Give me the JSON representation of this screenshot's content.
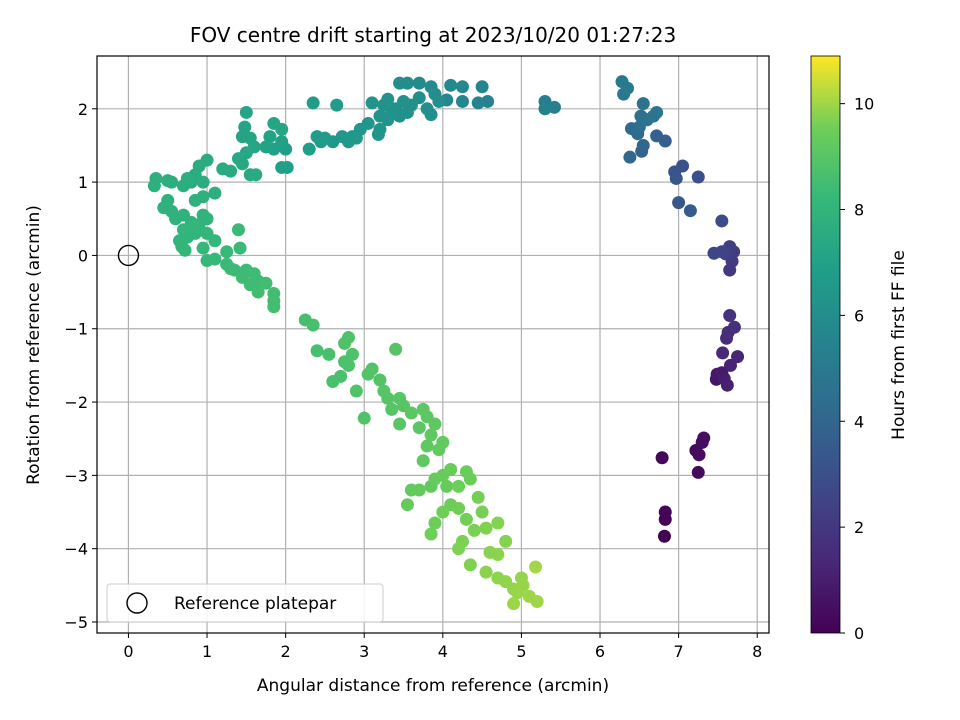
{
  "chart_data": {
    "type": "scatter",
    "title": "FOV centre drift starting at 2023/10/20 01:27:23",
    "xlabel": "Angular distance from reference (arcmin)",
    "ylabel": "Rotation from reference (arcmin)",
    "xlim": [
      -0.4,
      8.15
    ],
    "ylim": [
      -5.15,
      2.72
    ],
    "xticks": [
      0,
      1,
      2,
      3,
      4,
      5,
      6,
      7,
      8
    ],
    "yticks": [
      -5,
      -4,
      -3,
      -2,
      -1,
      0,
      1,
      2
    ],
    "grid": true,
    "colorbar": {
      "label": "Hours from first FF file",
      "range": [
        0,
        10.9
      ],
      "ticks": [
        0,
        2,
        4,
        6,
        8,
        10
      ],
      "colormap": "viridis"
    },
    "legend": {
      "position": "lower-left",
      "entries": [
        "Reference platepar"
      ]
    },
    "reference_point": {
      "x": 0,
      "y": 0,
      "name": "Reference platepar"
    },
    "columns": [
      "x",
      "y",
      "hours"
    ],
    "points": [
      [
        6.82,
        -3.83,
        0.05
      ],
      [
        6.83,
        -3.6,
        0.1
      ],
      [
        6.83,
        -3.5,
        0.15
      ],
      [
        6.79,
        -2.76,
        0.2
      ],
      [
        7.25,
        -2.96,
        0.3
      ],
      [
        7.22,
        -2.66,
        0.35
      ],
      [
        7.26,
        -2.72,
        0.4
      ],
      [
        7.3,
        -2.55,
        0.45
      ],
      [
        7.32,
        -2.49,
        0.5
      ],
      [
        7.48,
        -1.69,
        0.7
      ],
      [
        7.49,
        -1.62,
        0.8
      ],
      [
        7.55,
        -1.6,
        0.9
      ],
      [
        7.58,
        -1.68,
        1.0
      ],
      [
        7.62,
        -1.77,
        1.1
      ],
      [
        7.66,
        -1.5,
        1.2
      ],
      [
        7.75,
        -1.38,
        1.3
      ],
      [
        7.56,
        -1.33,
        1.4
      ],
      [
        7.61,
        -1.13,
        1.5
      ],
      [
        7.63,
        -1.05,
        1.6
      ],
      [
        7.71,
        -0.98,
        1.7
      ],
      [
        7.65,
        -0.82,
        1.8
      ],
      [
        7.65,
        -0.2,
        2.0
      ],
      [
        7.68,
        -0.08,
        2.1
      ],
      [
        7.7,
        0.05,
        2.2
      ],
      [
        7.65,
        0.12,
        2.3
      ],
      [
        7.6,
        0.02,
        2.4
      ],
      [
        7.55,
        0.05,
        2.5
      ],
      [
        7.45,
        0.03,
        2.6
      ],
      [
        7.55,
        0.47,
        2.8
      ],
      [
        7.25,
        1.07,
        3.0
      ],
      [
        7.05,
        1.22,
        3.1
      ],
      [
        6.95,
        1.14,
        3.2
      ],
      [
        6.97,
        1.05,
        3.3
      ],
      [
        7.0,
        0.72,
        3.4
      ],
      [
        7.15,
        0.61,
        3.5
      ],
      [
        6.83,
        1.56,
        3.7
      ],
      [
        6.72,
        1.63,
        3.8
      ],
      [
        6.53,
        1.42,
        3.9
      ],
      [
        6.55,
        1.5,
        4.0
      ],
      [
        6.38,
        1.34,
        4.1
      ],
      [
        6.48,
        1.66,
        4.2
      ],
      [
        6.4,
        1.73,
        4.3
      ],
      [
        6.5,
        1.75,
        4.4
      ],
      [
        6.52,
        1.9,
        4.5
      ],
      [
        6.6,
        1.85,
        4.6
      ],
      [
        6.55,
        2.07,
        4.7
      ],
      [
        6.68,
        1.9,
        4.75
      ],
      [
        6.72,
        1.95,
        4.8
      ],
      [
        6.3,
        2.2,
        4.9
      ],
      [
        6.35,
        2.28,
        5.0
      ],
      [
        6.28,
        2.37,
        5.05
      ],
      [
        5.3,
        2.1,
        5.2
      ],
      [
        5.42,
        2.02,
        5.3
      ],
      [
        5.3,
        2.0,
        5.35
      ],
      [
        4.57,
        2.1,
        5.5
      ],
      [
        4.45,
        2.08,
        5.55
      ],
      [
        4.5,
        2.3,
        5.6
      ],
      [
        4.25,
        2.1,
        5.65
      ],
      [
        4.05,
        2.12,
        5.7
      ],
      [
        4.25,
        2.3,
        5.75
      ],
      [
        4.1,
        2.32,
        5.8
      ],
      [
        3.85,
        2.3,
        5.85
      ],
      [
        3.7,
        2.35,
        5.9
      ],
      [
        3.55,
        2.35,
        5.95
      ],
      [
        3.45,
        2.35,
        6.0
      ],
      [
        3.9,
        2.2,
        6.02
      ],
      [
        3.95,
        2.1,
        6.04
      ],
      [
        3.8,
        2.0,
        6.06
      ],
      [
        3.85,
        1.92,
        6.08
      ],
      [
        3.7,
        2.15,
        6.1
      ],
      [
        3.6,
        2.05,
        6.12
      ],
      [
        3.55,
        1.95,
        6.14
      ],
      [
        3.5,
        2.1,
        6.16
      ],
      [
        3.45,
        1.9,
        6.18
      ],
      [
        3.4,
        2.0,
        6.2
      ],
      [
        3.35,
        1.95,
        6.22
      ],
      [
        3.3,
        1.85,
        6.24
      ],
      [
        3.2,
        1.9,
        6.26
      ],
      [
        3.25,
        2.05,
        6.28
      ],
      [
        3.3,
        2.13,
        6.3
      ],
      [
        3.1,
        2.08,
        6.32
      ],
      [
        3.05,
        1.8,
        6.34
      ],
      [
        3.18,
        1.65,
        6.36
      ],
      [
        3.2,
        1.72,
        6.38
      ],
      [
        2.95,
        1.72,
        6.42
      ],
      [
        2.85,
        1.62,
        6.46
      ],
      [
        2.8,
        1.55,
        6.5
      ],
      [
        2.72,
        1.62,
        6.52
      ],
      [
        2.9,
        1.6,
        6.54
      ],
      [
        2.6,
        1.55,
        6.58
      ],
      [
        2.5,
        1.6,
        6.62
      ],
      [
        2.45,
        1.55,
        6.66
      ],
      [
        2.65,
        2.05,
        6.7
      ],
      [
        2.35,
        2.08,
        6.74
      ],
      [
        2.4,
        1.62,
        6.78
      ],
      [
        2.3,
        1.45,
        6.82
      ],
      [
        2.0,
        1.45,
        6.86
      ],
      [
        2.02,
        1.2,
        6.9
      ],
      [
        1.95,
        1.2,
        6.94
      ],
      [
        1.85,
        1.45,
        6.98
      ],
      [
        1.95,
        1.55,
        7.0
      ],
      [
        1.75,
        1.48,
        7.04
      ],
      [
        1.8,
        1.62,
        7.08
      ],
      [
        1.55,
        1.6,
        7.12
      ],
      [
        1.45,
        1.62,
        7.14
      ],
      [
        1.48,
        1.75,
        7.16
      ],
      [
        1.5,
        1.95,
        7.18
      ],
      [
        1.85,
        1.8,
        7.2
      ],
      [
        1.95,
        1.72,
        7.22
      ],
      [
        1.6,
        1.48,
        7.26
      ],
      [
        1.5,
        1.4,
        7.3
      ],
      [
        1.4,
        1.32,
        7.34
      ],
      [
        1.45,
        1.25,
        7.38
      ],
      [
        1.55,
        1.1,
        7.42
      ],
      [
        1.62,
        1.1,
        7.44
      ],
      [
        1.3,
        1.15,
        7.46
      ],
      [
        1.2,
        1.18,
        7.5
      ],
      [
        1.0,
        1.3,
        7.54
      ],
      [
        0.9,
        1.22,
        7.56
      ],
      [
        0.85,
        1.1,
        7.58
      ],
      [
        0.95,
        1.0,
        7.6
      ],
      [
        0.8,
        1.0,
        7.62
      ],
      [
        0.7,
        0.95,
        7.64
      ],
      [
        0.75,
        1.05,
        7.66
      ],
      [
        0.55,
        1.0,
        7.68
      ],
      [
        0.5,
        1.02,
        7.7
      ],
      [
        0.35,
        1.05,
        7.72
      ],
      [
        0.33,
        0.95,
        7.74
      ],
      [
        1.1,
        0.85,
        7.76
      ],
      [
        0.95,
        0.8,
        7.78
      ],
      [
        0.85,
        0.75,
        7.8
      ],
      [
        0.5,
        0.75,
        7.82
      ],
      [
        0.45,
        0.65,
        7.84
      ],
      [
        0.55,
        0.6,
        7.86
      ],
      [
        0.6,
        0.5,
        7.88
      ],
      [
        0.7,
        0.55,
        7.9
      ],
      [
        0.8,
        0.45,
        7.92
      ],
      [
        0.9,
        0.42,
        7.94
      ],
      [
        0.95,
        0.55,
        7.96
      ],
      [
        1.0,
        0.5,
        7.98
      ],
      [
        0.85,
        0.3,
        8.0
      ],
      [
        0.75,
        0.25,
        8.02
      ],
      [
        0.7,
        0.35,
        8.04
      ],
      [
        0.65,
        0.2,
        8.06
      ],
      [
        0.68,
        0.12,
        8.08
      ],
      [
        0.72,
        0.07,
        8.1
      ],
      [
        0.85,
        0.4,
        8.12
      ],
      [
        1.0,
        0.3,
        8.14
      ],
      [
        1.1,
        0.2,
        8.16
      ],
      [
        0.95,
        0.1,
        8.18
      ],
      [
        1.0,
        -0.07,
        8.2
      ],
      [
        1.1,
        -0.05,
        8.22
      ],
      [
        1.25,
        0.05,
        8.24
      ],
      [
        1.4,
        0.35,
        8.26
      ],
      [
        1.42,
        0.1,
        8.28
      ],
      [
        1.25,
        -0.12,
        8.3
      ],
      [
        1.3,
        -0.18,
        8.32
      ],
      [
        1.35,
        -0.2,
        8.34
      ],
      [
        1.5,
        -0.2,
        8.36
      ],
      [
        1.45,
        -0.3,
        8.38
      ],
      [
        1.6,
        -0.25,
        8.4
      ],
      [
        1.65,
        -0.35,
        8.42
      ],
      [
        1.55,
        -0.4,
        8.44
      ],
      [
        1.75,
        -0.38,
        8.46
      ],
      [
        1.85,
        -0.52,
        8.48
      ],
      [
        1.65,
        -0.5,
        8.5
      ],
      [
        1.85,
        -0.62,
        8.52
      ],
      [
        1.85,
        -0.7,
        8.54
      ],
      [
        2.25,
        -0.88,
        8.6
      ],
      [
        2.35,
        -0.95,
        8.62
      ],
      [
        2.4,
        -1.3,
        8.64
      ],
      [
        2.55,
        -1.35,
        8.66
      ],
      [
        2.6,
        -1.72,
        8.68
      ],
      [
        2.7,
        -1.65,
        8.7
      ],
      [
        2.75,
        -1.45,
        8.72
      ],
      [
        2.8,
        -1.5,
        8.74
      ],
      [
        2.85,
        -1.35,
        8.76
      ],
      [
        2.75,
        -1.2,
        8.78
      ],
      [
        2.8,
        -1.12,
        8.8
      ],
      [
        2.9,
        -1.85,
        8.82
      ],
      [
        3.0,
        -2.22,
        8.84
      ],
      [
        3.05,
        -1.62,
        8.86
      ],
      [
        3.1,
        -1.55,
        8.88
      ],
      [
        3.2,
        -1.7,
        8.9
      ],
      [
        3.3,
        -1.95,
        8.92
      ],
      [
        3.35,
        -2.1,
        8.94
      ],
      [
        3.4,
        -1.28,
        8.96
      ],
      [
        3.25,
        -1.85,
        8.98
      ],
      [
        3.45,
        -1.95,
        9.0
      ],
      [
        3.5,
        -2.05,
        9.02
      ],
      [
        3.45,
        -2.3,
        9.04
      ],
      [
        3.6,
        -2.15,
        9.06
      ],
      [
        3.7,
        -2.35,
        9.08
      ],
      [
        3.75,
        -2.1,
        9.1
      ],
      [
        3.8,
        -2.2,
        9.12
      ],
      [
        3.9,
        -2.3,
        9.14
      ],
      [
        3.85,
        -2.45,
        9.16
      ],
      [
        3.8,
        -2.6,
        9.18
      ],
      [
        3.75,
        -2.8,
        9.2
      ],
      [
        3.95,
        -2.65,
        9.22
      ],
      [
        4.0,
        -2.55,
        9.24
      ],
      [
        3.85,
        -3.15,
        9.26
      ],
      [
        3.7,
        -3.2,
        9.28
      ],
      [
        3.6,
        -3.2,
        9.3
      ],
      [
        3.55,
        -3.4,
        9.32
      ],
      [
        3.9,
        -3.05,
        9.34
      ],
      [
        4.0,
        -3.0,
        9.36
      ],
      [
        4.05,
        -3.15,
        9.38
      ],
      [
        4.1,
        -2.92,
        9.4
      ],
      [
        4.3,
        -2.95,
        9.42
      ],
      [
        4.35,
        -3.05,
        9.44
      ],
      [
        4.2,
        -3.15,
        9.46
      ],
      [
        4.1,
        -3.4,
        9.48
      ],
      [
        3.9,
        -3.65,
        9.5
      ],
      [
        3.85,
        -3.8,
        9.52
      ],
      [
        4.0,
        -3.5,
        9.54
      ],
      [
        4.2,
        -3.45,
        9.56
      ],
      [
        4.3,
        -3.6,
        9.58
      ],
      [
        4.45,
        -3.3,
        9.6
      ],
      [
        4.5,
        -3.5,
        9.62
      ],
      [
        4.4,
        -3.75,
        9.64
      ],
      [
        4.25,
        -3.9,
        9.66
      ],
      [
        4.2,
        -4.0,
        9.68
      ],
      [
        4.35,
        -4.22,
        9.7
      ],
      [
        4.55,
        -3.72,
        9.72
      ],
      [
        4.7,
        -3.65,
        9.74
      ],
      [
        4.8,
        -3.9,
        9.76
      ],
      [
        4.6,
        -4.05,
        9.78
      ],
      [
        4.7,
        -4.08,
        9.8
      ],
      [
        4.55,
        -4.32,
        9.82
      ],
      [
        4.7,
        -4.4,
        9.84
      ],
      [
        4.8,
        -4.45,
        9.86
      ],
      [
        4.9,
        -4.55,
        9.88
      ],
      [
        5.0,
        -4.4,
        9.9
      ],
      [
        5.02,
        -4.5,
        9.92
      ],
      [
        4.95,
        -4.6,
        9.94
      ],
      [
        4.9,
        -4.75,
        9.96
      ],
      [
        5.1,
        -4.65,
        9.98
      ],
      [
        5.2,
        -4.72,
        10.0
      ],
      [
        5.18,
        -4.25,
        10.05
      ]
    ]
  }
}
